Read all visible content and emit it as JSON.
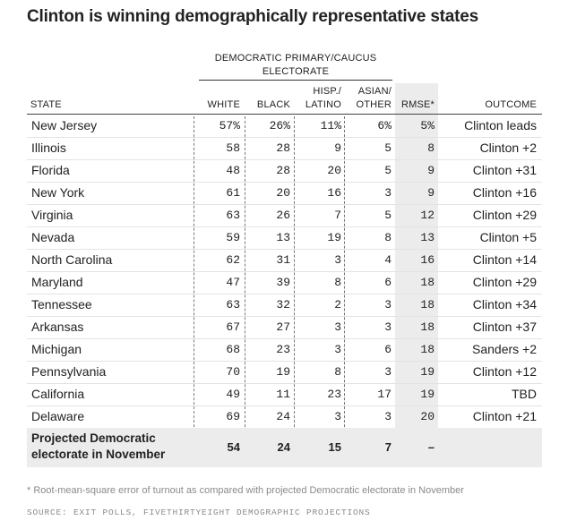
{
  "chart_data": {
    "type": "table",
    "title": "Clinton is winning demographically representative states",
    "group_header": [
      "Democratic primary/caucus",
      "electorate"
    ],
    "columns": {
      "state": "STATE",
      "white": "WHITE",
      "black": "BLACK",
      "hisp": [
        "HISP./",
        "LATINO"
      ],
      "asian": [
        "ASIAN/",
        "OTHER"
      ],
      "rmse": "RMSE*",
      "outcome": "OUTCOME"
    },
    "rows": [
      {
        "state": "New Jersey",
        "white": "57%",
        "black": "26%",
        "hisp": "11%",
        "asian": "6%",
        "rmse": "5%",
        "outcome": "Clinton leads"
      },
      {
        "state": "Illinois",
        "white": "58",
        "black": "28",
        "hisp": "9",
        "asian": "5",
        "rmse": "8",
        "outcome": "Clinton +2"
      },
      {
        "state": "Florida",
        "white": "48",
        "black": "28",
        "hisp": "20",
        "asian": "5",
        "rmse": "9",
        "outcome": "Clinton +31"
      },
      {
        "state": "New York",
        "white": "61",
        "black": "20",
        "hisp": "16",
        "asian": "3",
        "rmse": "9",
        "outcome": "Clinton +16"
      },
      {
        "state": "Virginia",
        "white": "63",
        "black": "26",
        "hisp": "7",
        "asian": "5",
        "rmse": "12",
        "outcome": "Clinton +29"
      },
      {
        "state": "Nevada",
        "white": "59",
        "black": "13",
        "hisp": "19",
        "asian": "8",
        "rmse": "13",
        "outcome": "Clinton +5"
      },
      {
        "state": "North Carolina",
        "white": "62",
        "black": "31",
        "hisp": "3",
        "asian": "4",
        "rmse": "16",
        "outcome": "Clinton +14"
      },
      {
        "state": "Maryland",
        "white": "47",
        "black": "39",
        "hisp": "8",
        "asian": "6",
        "rmse": "18",
        "outcome": "Clinton +29"
      },
      {
        "state": "Tennessee",
        "white": "63",
        "black": "32",
        "hisp": "2",
        "asian": "3",
        "rmse": "18",
        "outcome": "Clinton +34"
      },
      {
        "state": "Arkansas",
        "white": "67",
        "black": "27",
        "hisp": "3",
        "asian": "3",
        "rmse": "18",
        "outcome": "Clinton +37"
      },
      {
        "state": "Michigan",
        "white": "68",
        "black": "23",
        "hisp": "3",
        "asian": "6",
        "rmse": "18",
        "outcome": "Sanders +2"
      },
      {
        "state": "Pennsylvania",
        "white": "70",
        "black": "19",
        "hisp": "8",
        "asian": "3",
        "rmse": "19",
        "outcome": "Clinton +12"
      },
      {
        "state": "California",
        "white": "49",
        "black": "11",
        "hisp": "23",
        "asian": "17",
        "rmse": "19",
        "outcome": "TBD"
      },
      {
        "state": "Delaware",
        "white": "69",
        "black": "24",
        "hisp": "3",
        "asian": "3",
        "rmse": "20",
        "outcome": "Clinton +21"
      }
    ],
    "total": {
      "label": "Projected Democratic electorate in November",
      "white": "54",
      "black": "24",
      "hisp": "15",
      "asian": "7",
      "rmse": "–"
    },
    "footnote": "* Root-mean-square error of turnout as compared with projected Democratic electorate in November",
    "source": "Source: Exit polls, FiveThirtyEight demographic projections"
  }
}
